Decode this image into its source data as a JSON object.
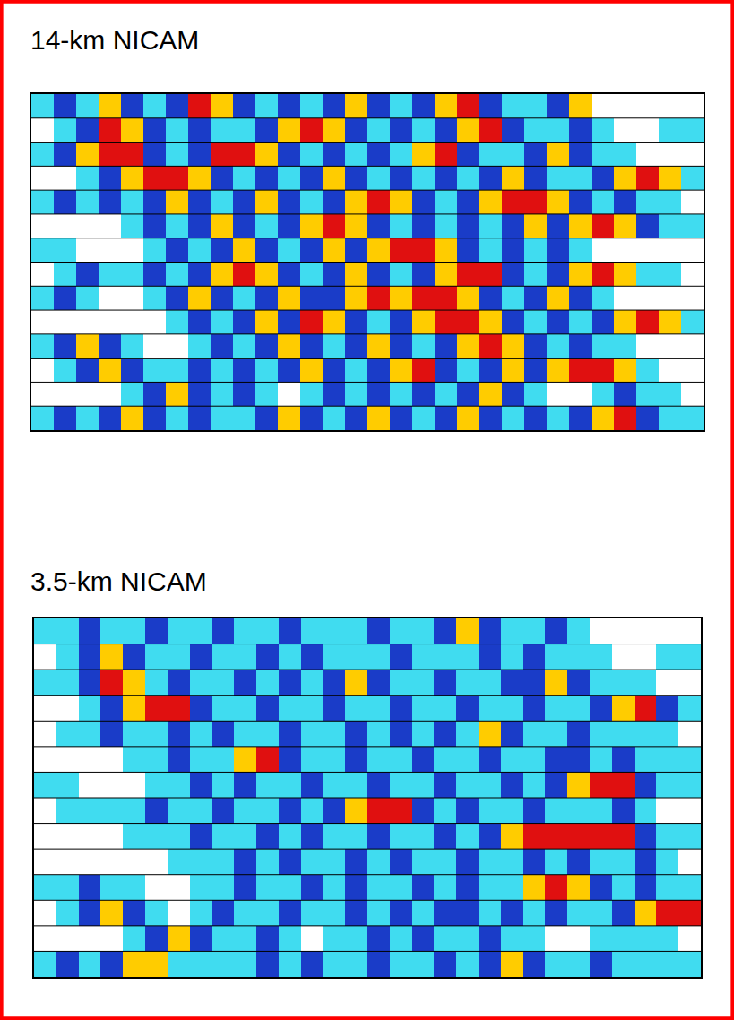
{
  "chart_data": [
    {
      "type": "heatmap",
      "title": "14-km NICAM",
      "tick_labels": false,
      "colors": [
        "#ffffff",
        "#40dcf0",
        "#1a3cc8",
        "#ffcc00",
        "#e01010"
      ],
      "z": [
        [
          1,
          2,
          1,
          3,
          2,
          1,
          2,
          4,
          3,
          2,
          1,
          2,
          1,
          2,
          3,
          2,
          1,
          2,
          3,
          4,
          2,
          1,
          1,
          2,
          3,
          0,
          0,
          0,
          0,
          0
        ],
        [
          0,
          1,
          2,
          4,
          3,
          2,
          1,
          2,
          1,
          1,
          2,
          3,
          4,
          3,
          2,
          1,
          2,
          1,
          2,
          3,
          4,
          2,
          1,
          1,
          2,
          1,
          0,
          0,
          1,
          1
        ],
        [
          1,
          2,
          3,
          4,
          4,
          2,
          1,
          2,
          4,
          4,
          3,
          2,
          1,
          2,
          1,
          2,
          1,
          3,
          4,
          2,
          1,
          1,
          2,
          3,
          2,
          1,
          1,
          0,
          0,
          0
        ],
        [
          0,
          0,
          1,
          2,
          3,
          4,
          4,
          3,
          2,
          1,
          2,
          1,
          2,
          3,
          2,
          1,
          2,
          1,
          2,
          1,
          2,
          3,
          2,
          1,
          1,
          2,
          3,
          4,
          3,
          1
        ],
        [
          1,
          2,
          1,
          2,
          1,
          2,
          3,
          2,
          1,
          2,
          3,
          2,
          1,
          2,
          3,
          4,
          3,
          2,
          1,
          2,
          3,
          4,
          4,
          3,
          2,
          1,
          2,
          1,
          1,
          0
        ],
        [
          0,
          0,
          0,
          0,
          1,
          2,
          1,
          2,
          3,
          2,
          1,
          2,
          3,
          4,
          3,
          2,
          1,
          2,
          1,
          2,
          1,
          2,
          3,
          2,
          3,
          4,
          3,
          2,
          1,
          1
        ],
        [
          1,
          1,
          0,
          0,
          0,
          1,
          2,
          1,
          2,
          3,
          2,
          1,
          2,
          3,
          2,
          3,
          4,
          4,
          3,
          2,
          1,
          2,
          1,
          2,
          1,
          0,
          0,
          0,
          0,
          0
        ],
        [
          0,
          1,
          2,
          1,
          1,
          2,
          1,
          2,
          3,
          4,
          3,
          2,
          1,
          2,
          3,
          2,
          1,
          2,
          3,
          4,
          4,
          2,
          1,
          2,
          3,
          4,
          3,
          1,
          1,
          0
        ],
        [
          1,
          2,
          1,
          0,
          0,
          1,
          2,
          3,
          2,
          1,
          2,
          3,
          2,
          2,
          3,
          4,
          3,
          4,
          4,
          3,
          2,
          1,
          2,
          3,
          2,
          1,
          0,
          0,
          0,
          0
        ],
        [
          0,
          0,
          0,
          0,
          0,
          0,
          1,
          2,
          1,
          2,
          3,
          2,
          4,
          3,
          2,
          1,
          2,
          3,
          4,
          4,
          3,
          2,
          1,
          2,
          1,
          2,
          3,
          4,
          3,
          1
        ],
        [
          1,
          2,
          3,
          2,
          1,
          0,
          0,
          1,
          2,
          1,
          2,
          3,
          2,
          1,
          2,
          3,
          2,
          1,
          2,
          3,
          4,
          3,
          2,
          1,
          2,
          1,
          1,
          0,
          0,
          0
        ],
        [
          0,
          1,
          2,
          3,
          2,
          1,
          1,
          2,
          1,
          2,
          1,
          2,
          3,
          2,
          1,
          2,
          3,
          4,
          2,
          1,
          2,
          3,
          2,
          3,
          4,
          4,
          3,
          1,
          0,
          0
        ],
        [
          0,
          0,
          0,
          0,
          1,
          2,
          3,
          2,
          1,
          2,
          1,
          0,
          1,
          2,
          1,
          2,
          1,
          2,
          1,
          2,
          3,
          2,
          1,
          0,
          0,
          1,
          2,
          1,
          1,
          0
        ],
        [
          1,
          2,
          1,
          2,
          3,
          2,
          1,
          2,
          1,
          1,
          2,
          3,
          2,
          1,
          2,
          3,
          2,
          1,
          2,
          3,
          2,
          1,
          2,
          1,
          2,
          3,
          4,
          2,
          1,
          1
        ]
      ]
    },
    {
      "type": "heatmap",
      "title": "3.5-km NICAM",
      "tick_labels": false,
      "colors": [
        "#ffffff",
        "#40dcf0",
        "#1a3cc8",
        "#ffcc00",
        "#e01010"
      ],
      "z": [
        [
          1,
          1,
          2,
          1,
          1,
          2,
          1,
          1,
          2,
          1,
          1,
          2,
          1,
          1,
          1,
          2,
          1,
          1,
          2,
          3,
          2,
          1,
          1,
          2,
          1,
          0,
          0,
          0,
          0,
          0
        ],
        [
          0,
          1,
          2,
          3,
          2,
          1,
          1,
          2,
          1,
          1,
          2,
          1,
          2,
          1,
          1,
          1,
          2,
          1,
          1,
          1,
          2,
          1,
          2,
          1,
          1,
          1,
          0,
          0,
          1,
          1
        ],
        [
          1,
          1,
          2,
          4,
          3,
          1,
          2,
          1,
          1,
          2,
          1,
          2,
          1,
          2,
          3,
          2,
          1,
          1,
          2,
          1,
          1,
          2,
          2,
          3,
          2,
          1,
          1,
          1,
          0,
          0
        ],
        [
          0,
          0,
          1,
          2,
          3,
          4,
          4,
          2,
          1,
          1,
          2,
          1,
          1,
          2,
          1,
          1,
          2,
          1,
          1,
          2,
          1,
          1,
          2,
          1,
          1,
          2,
          3,
          4,
          2,
          1
        ],
        [
          0,
          1,
          1,
          2,
          1,
          1,
          2,
          1,
          2,
          1,
          1,
          2,
          1,
          1,
          2,
          1,
          2,
          1,
          2,
          1,
          3,
          2,
          1,
          1,
          2,
          1,
          1,
          1,
          1,
          0
        ],
        [
          0,
          0,
          0,
          0,
          1,
          1,
          2,
          1,
          1,
          3,
          4,
          2,
          1,
          1,
          2,
          1,
          1,
          2,
          1,
          1,
          2,
          1,
          1,
          2,
          2,
          1,
          2,
          1,
          1,
          1
        ],
        [
          1,
          1,
          0,
          0,
          0,
          1,
          1,
          2,
          1,
          2,
          1,
          1,
          2,
          1,
          1,
          2,
          1,
          1,
          2,
          1,
          1,
          2,
          1,
          2,
          3,
          4,
          4,
          2,
          1,
          1
        ],
        [
          0,
          1,
          1,
          1,
          1,
          2,
          1,
          1,
          2,
          1,
          1,
          2,
          1,
          2,
          3,
          4,
          4,
          2,
          1,
          2,
          1,
          1,
          2,
          1,
          1,
          1,
          2,
          1,
          0,
          0
        ],
        [
          0,
          0,
          0,
          0,
          1,
          1,
          1,
          2,
          1,
          1,
          2,
          1,
          2,
          1,
          1,
          2,
          1,
          1,
          2,
          1,
          2,
          3,
          4,
          4,
          4,
          4,
          4,
          2,
          1,
          1
        ],
        [
          0,
          0,
          0,
          0,
          0,
          0,
          1,
          1,
          1,
          2,
          1,
          2,
          1,
          1,
          2,
          1,
          2,
          1,
          1,
          2,
          1,
          1,
          2,
          1,
          2,
          1,
          1,
          2,
          1,
          0
        ],
        [
          1,
          1,
          2,
          1,
          1,
          0,
          0,
          1,
          1,
          2,
          1,
          1,
          2,
          1,
          2,
          1,
          1,
          2,
          1,
          2,
          1,
          1,
          3,
          4,
          3,
          2,
          1,
          2,
          1,
          1
        ],
        [
          0,
          1,
          2,
          3,
          2,
          1,
          0,
          1,
          2,
          1,
          1,
          2,
          1,
          1,
          2,
          1,
          2,
          1,
          2,
          2,
          1,
          2,
          1,
          2,
          1,
          1,
          2,
          3,
          4,
          4
        ],
        [
          0,
          0,
          0,
          0,
          1,
          2,
          3,
          2,
          1,
          1,
          2,
          1,
          0,
          1,
          1,
          2,
          1,
          2,
          1,
          1,
          2,
          1,
          1,
          0,
          0,
          1,
          1,
          1,
          1,
          0
        ],
        [
          1,
          2,
          1,
          2,
          3,
          3,
          1,
          1,
          1,
          1,
          2,
          1,
          2,
          1,
          1,
          2,
          1,
          1,
          2,
          1,
          2,
          3,
          2,
          1,
          1,
          2,
          1,
          1,
          1,
          1
        ]
      ]
    }
  ]
}
